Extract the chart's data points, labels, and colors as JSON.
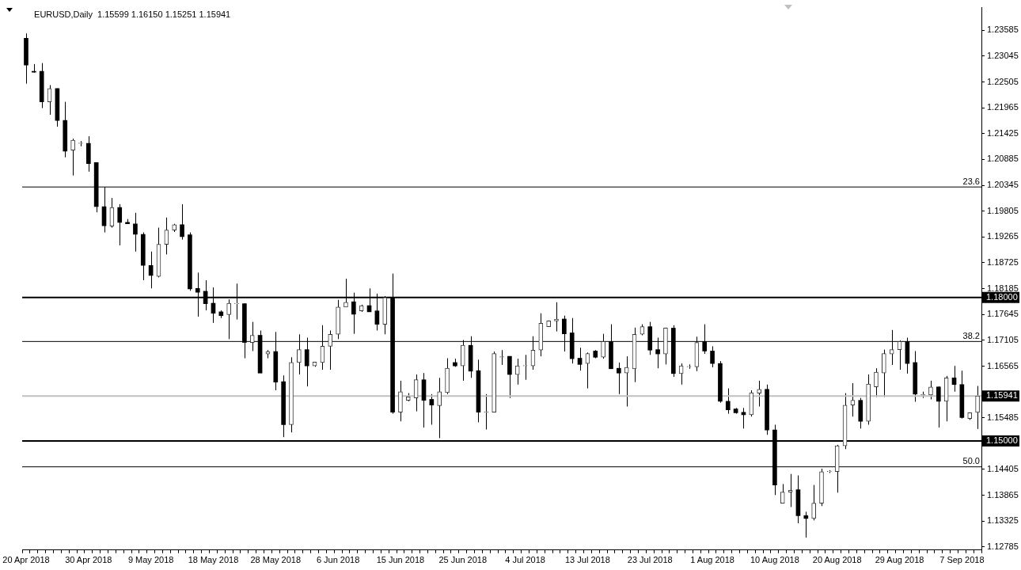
{
  "chart_data": {
    "type": "candlestick",
    "title": "EURUSD,Daily",
    "subtitle": "1.15599 1.16150 1.15251 1.15941",
    "color": "#000000",
    "grid": false,
    "legend": false,
    "categories": [
      "20 Apr 2018",
      null,
      null,
      null,
      null,
      null,
      null,
      null,
      "30 Apr 2018",
      null,
      null,
      null,
      null,
      null,
      null,
      null,
      "9 May 2018",
      null,
      null,
      null,
      null,
      null,
      null,
      null,
      "18 May 2018",
      null,
      null,
      null,
      null,
      null,
      null,
      null,
      "28 May 2018",
      null,
      null,
      null,
      null,
      null,
      null,
      null,
      "6 Jun 2018",
      null,
      null,
      null,
      null,
      null,
      null,
      null,
      "15 Jun 2018",
      null,
      null,
      null,
      null,
      null,
      null,
      null,
      "25 Jun 2018",
      null,
      null,
      null,
      null,
      null,
      null,
      null,
      "4 Jul 2018",
      null,
      null,
      null,
      null,
      null,
      null,
      null,
      "13 Jul 2018",
      null,
      null,
      null,
      null,
      null,
      null,
      null,
      "23 Jul 2018",
      null,
      null,
      null,
      null,
      null,
      null,
      null,
      "1 Aug 2018",
      null,
      null,
      null,
      null,
      null,
      null,
      null,
      "10 Aug 2018",
      null,
      null,
      null,
      null,
      null,
      null,
      null,
      "20 Aug 2018",
      null,
      null,
      null,
      null,
      null,
      null,
      null,
      "29 Aug 2018",
      null,
      null,
      null,
      null,
      null,
      null,
      null,
      "7 Sep 2018",
      null,
      null
    ],
    "ohlc": [
      [
        1.2342,
        1.2352,
        1.2247,
        1.2286
      ],
      [
        1.2272,
        1.2288,
        1.227,
        1.2271
      ],
      [
        1.2273,
        1.229,
        1.2196,
        1.2209
      ],
      [
        1.2209,
        1.2244,
        1.2182,
        1.2237
      ],
      [
        1.2237,
        1.2237,
        1.2157,
        1.217
      ],
      [
        1.217,
        1.2209,
        1.2093,
        1.2106
      ],
      [
        1.2108,
        1.2132,
        1.2055,
        1.2129
      ],
      [
        1.2122,
        1.2127,
        1.2116,
        1.2123
      ],
      [
        1.2122,
        1.2137,
        1.2063,
        1.208
      ],
      [
        1.2082,
        1.2082,
        1.1978,
        1.199
      ],
      [
        1.199,
        1.2031,
        1.1936,
        1.195
      ],
      [
        1.1949,
        1.2008,
        1.1946,
        1.1988
      ],
      [
        1.1988,
        1.1995,
        1.1909,
        1.1957
      ],
      [
        1.1957,
        1.1964,
        1.1954,
        1.1954
      ],
      [
        1.1954,
        1.1977,
        1.1896,
        1.1932
      ],
      [
        1.1932,
        1.1936,
        1.1836,
        1.1867
      ],
      [
        1.1867,
        1.1896,
        1.1819,
        1.1846
      ],
      [
        1.1844,
        1.1946,
        1.1842,
        1.1911
      ],
      [
        1.1911,
        1.1967,
        1.189,
        1.1941
      ],
      [
        1.1941,
        1.1954,
        1.1937,
        1.1952
      ],
      [
        1.1952,
        1.1995,
        1.1921,
        1.1927
      ],
      [
        1.1931,
        1.1936,
        1.1814,
        1.1818
      ],
      [
        1.1819,
        1.1852,
        1.176,
        1.1811
      ],
      [
        1.1813,
        1.1836,
        1.1773,
        1.1787
      ],
      [
        1.1788,
        1.1821,
        1.1747,
        1.1767
      ],
      [
        1.177,
        1.1773,
        1.1757,
        1.1762
      ],
      [
        1.1764,
        1.1796,
        1.1713,
        1.1788
      ],
      [
        1.1787,
        1.1829,
        1.1754,
        1.1788
      ],
      [
        1.1787,
        1.1788,
        1.1673,
        1.1706
      ],
      [
        1.1706,
        1.1749,
        1.1688,
        1.1721
      ],
      [
        1.1721,
        1.1731,
        1.1642,
        1.1642
      ],
      [
        1.1682,
        1.169,
        1.1673,
        1.1687
      ],
      [
        1.1687,
        1.1728,
        1.1606,
        1.1623
      ],
      [
        1.1624,
        1.1637,
        1.1508,
        1.1534
      ],
      [
        1.1534,
        1.1675,
        1.1518,
        1.1664
      ],
      [
        1.1664,
        1.1723,
        1.1639,
        1.1691
      ],
      [
        1.1691,
        1.1716,
        1.1614,
        1.1657
      ],
      [
        1.1657,
        1.1665,
        1.1655,
        1.1665
      ],
      [
        1.1664,
        1.1742,
        1.1649,
        1.1698
      ],
      [
        1.1698,
        1.1731,
        1.1649,
        1.1723
      ],
      [
        1.1723,
        1.1795,
        1.1713,
        1.178
      ],
      [
        1.178,
        1.1839,
        1.178,
        1.179
      ],
      [
        1.1791,
        1.181,
        1.1724,
        1.1765
      ],
      [
        1.1772,
        1.1785,
        1.177,
        1.1783
      ],
      [
        1.1783,
        1.1819,
        1.177,
        1.177
      ],
      [
        1.1772,
        1.1808,
        1.1731,
        1.1744
      ],
      [
        1.1744,
        1.1803,
        1.1723,
        1.18
      ],
      [
        1.18,
        1.185,
        1.1557,
        1.156
      ],
      [
        1.156,
        1.1626,
        1.1541,
        1.1603
      ],
      [
        1.1585,
        1.16,
        1.1583,
        1.1592
      ],
      [
        1.159,
        1.1639,
        1.1562,
        1.1628
      ],
      [
        1.1628,
        1.1642,
        1.1528,
        1.1585
      ],
      [
        1.1587,
        1.1598,
        1.1534,
        1.1575
      ],
      [
        1.1574,
        1.1632,
        1.1506,
        1.1603
      ],
      [
        1.1601,
        1.1673,
        1.1598,
        1.1652
      ],
      [
        1.1664,
        1.1672,
        1.1655,
        1.1657
      ],
      [
        1.1657,
        1.1711,
        1.1626,
        1.17
      ],
      [
        1.17,
        1.1719,
        1.1632,
        1.1646
      ],
      [
        1.1647,
        1.167,
        1.1539,
        1.156
      ],
      [
        1.156,
        1.1598,
        1.1524,
        1.1561
      ],
      [
        1.156,
        1.1687,
        1.156,
        1.1683
      ],
      [
        1.1675,
        1.169,
        1.1659,
        1.1676
      ],
      [
        1.1677,
        1.1677,
        1.159,
        1.1639
      ],
      [
        1.1639,
        1.1672,
        1.1618,
        1.1657
      ],
      [
        1.1657,
        1.168,
        1.1628,
        1.1658
      ],
      [
        1.1657,
        1.1719,
        1.1649,
        1.169
      ],
      [
        1.169,
        1.1767,
        1.1677,
        1.1746
      ],
      [
        1.1739,
        1.1752,
        1.1739,
        1.1751
      ],
      [
        1.1751,
        1.179,
        1.1729,
        1.1755
      ],
      [
        1.1755,
        1.1762,
        1.1687,
        1.1724
      ],
      [
        1.1726,
        1.1757,
        1.1662,
        1.1672
      ],
      [
        1.1673,
        1.1695,
        1.1647,
        1.166
      ],
      [
        1.1662,
        1.1685,
        1.161,
        1.1683
      ],
      [
        1.1688,
        1.169,
        1.1673,
        1.1675
      ],
      [
        1.1675,
        1.1724,
        1.1672,
        1.1708
      ],
      [
        1.1708,
        1.1744,
        1.1651,
        1.1651
      ],
      [
        1.1652,
        1.1664,
        1.1598,
        1.1642
      ],
      [
        1.1642,
        1.1677,
        1.1572,
        1.1654
      ],
      [
        1.1651,
        1.1737,
        1.1623,
        1.1723
      ],
      [
        1.1723,
        1.1744,
        1.1721,
        1.1739
      ],
      [
        1.1739,
        1.1749,
        1.168,
        1.169
      ],
      [
        1.1691,
        1.1716,
        1.1652,
        1.1682
      ],
      [
        1.1682,
        1.1737,
        1.166,
        1.1736
      ],
      [
        1.1736,
        1.1742,
        1.1634,
        1.1641
      ],
      [
        1.1641,
        1.1662,
        1.1618,
        1.1657
      ],
      [
        1.1655,
        1.166,
        1.1651,
        1.1656
      ],
      [
        1.1655,
        1.1718,
        1.1646,
        1.1706
      ],
      [
        1.1708,
        1.1744,
        1.1682,
        1.1688
      ],
      [
        1.1688,
        1.1698,
        1.1654,
        1.1662
      ],
      [
        1.1662,
        1.1667,
        1.158,
        1.1583
      ],
      [
        1.1583,
        1.161,
        1.1557,
        1.1565
      ],
      [
        1.1567,
        1.1569,
        1.1557,
        1.1559
      ],
      [
        1.156,
        1.1569,
        1.1526,
        1.1555
      ],
      [
        1.1555,
        1.1606,
        1.1551,
        1.1601
      ],
      [
        1.16,
        1.1626,
        1.1572,
        1.1608
      ],
      [
        1.1608,
        1.1618,
        1.1513,
        1.1523
      ],
      [
        1.1523,
        1.1534,
        1.1387,
        1.1408
      ],
      [
        1.137,
        1.141,
        1.137,
        1.1393
      ],
      [
        1.1393,
        1.1431,
        1.1362,
        1.1397
      ],
      [
        1.1398,
        1.1428,
        1.1328,
        1.1344
      ],
      [
        1.1344,
        1.1352,
        1.1298,
        1.1338
      ],
      [
        1.1338,
        1.1408,
        1.1334,
        1.137
      ],
      [
        1.137,
        1.1442,
        1.1364,
        1.1436
      ],
      [
        1.1436,
        1.1439,
        1.1433,
        1.1437
      ],
      [
        1.1436,
        1.1492,
        1.1392,
        1.149
      ],
      [
        1.149,
        1.16,
        1.1483,
        1.1575
      ],
      [
        1.1575,
        1.1621,
        1.1551,
        1.1585
      ],
      [
        1.1585,
        1.159,
        1.1526,
        1.1541
      ],
      [
        1.1541,
        1.1639,
        1.1534,
        1.1619
      ],
      [
        1.1613,
        1.1652,
        1.1592,
        1.1644
      ],
      [
        1.1642,
        1.1691,
        1.1592,
        1.1683
      ],
      [
        1.1682,
        1.1732,
        1.1659,
        1.1691
      ],
      [
        1.1691,
        1.171,
        1.1649,
        1.1708
      ],
      [
        1.1708,
        1.1716,
        1.1641,
        1.1662
      ],
      [
        1.1664,
        1.1688,
        1.1582,
        1.1598
      ],
      [
        1.1596,
        1.1603,
        1.159,
        1.1597
      ],
      [
        1.1596,
        1.1626,
        1.1587,
        1.1613
      ],
      [
        1.1613,
        1.1614,
        1.1528,
        1.1583
      ],
      [
        1.1583,
        1.1636,
        1.1541,
        1.1632
      ],
      [
        1.1632,
        1.1657,
        1.1603,
        1.1618
      ],
      [
        1.1618,
        1.1647,
        1.1547,
        1.1549
      ],
      [
        1.1547,
        1.1559,
        1.1544,
        1.1559
      ],
      [
        1.15599,
        1.1615,
        1.15251,
        1.15941
      ]
    ],
    "colors": [
      "#000000",
      "#000000",
      "#000000",
      "#3a3a3a",
      "#000000",
      "#000000",
      "#3a3a3a",
      "#3a3a3a",
      "#000000",
      "#000000",
      "#000000",
      "#3a3a3a",
      "#000000",
      "#000000",
      "#000000",
      "#000000",
      "#000000",
      "#3a3a3a",
      "#3a3a3a",
      "#3a3a3a",
      "#000000",
      "#000000",
      "#000000",
      "#000000",
      "#000000",
      "#000000",
      "#3a3a3a",
      "#3a3a3a",
      "#000000",
      "#3a3a3a",
      "#000000",
      "#3a3a3a",
      "#000000",
      "#000000",
      "#3a3a3a",
      "#3a3a3a",
      "#000000",
      "#3a3a3a",
      "#3a3a3a",
      "#3a3a3a",
      "#3a3a3a",
      "#3a3a3a",
      "#000000",
      "#3a3a3a",
      "#000000",
      "#000000",
      "#3a3a3a",
      "#000000",
      "#3a3a3a",
      "#3a3a3a",
      "#3a3a3a",
      "#000000",
      "#000000",
      "#3a3a3a",
      "#3a3a3a",
      "#000000",
      "#3a3a3a",
      "#000000",
      "#000000",
      "#3a3a3a",
      "#3a3a3a",
      "#3a3a3a",
      "#000000",
      "#3a3a3a",
      "#3a3a3a",
      "#3a3a3a",
      "#3a3a3a",
      "#3a3a3a",
      "#3a3a3a",
      "#000000",
      "#000000",
      "#000000",
      "#3a3a3a",
      "#000000",
      "#3a3a3a",
      "#000000",
      "#000000",
      "#3a3a3a",
      "#3a3a3a",
      "#3a3a3a",
      "#000000",
      "#000000",
      "#3a3a3a",
      "#000000",
      "#3a3a3a",
      "#3a3a3a",
      "#3a3a3a",
      "#000000",
      "#000000",
      "#000000",
      "#000000",
      "#000000",
      "#000000",
      "#3a3a3a",
      "#3a3a3a",
      "#000000",
      "#000000",
      "#3a3a3a",
      "#3a3a3a",
      "#000000",
      "#000000",
      "#3a3a3a",
      "#3a3a3a",
      "#3a3a3a",
      "#3a3a3a",
      "#3a3a3a",
      "#3a3a3a",
      "#000000",
      "#3a3a3a",
      "#3a3a3a",
      "#3a3a3a",
      "#3a3a3a",
      "#3a3a3a",
      "#000000",
      "#000000",
      "#3a3a3a",
      "#3a3a3a",
      "#000000",
      "#3a3a3a",
      "#000000",
      "#000000",
      "#3a3a3a",
      "#3a3a3a"
    ],
    "ylim": [
      1.1272,
      1.2406
    ],
    "yticks": [
      1.12785,
      1.13325,
      1.13865,
      1.14405,
      {
        "value": 1.14945,
        "label": null
      },
      1.15485,
      {
        "value": 1.16025,
        "label": null
      },
      1.16565,
      1.17105,
      1.17645,
      1.18185,
      1.18725,
      1.19265,
      1.19805,
      1.20345,
      1.20885,
      1.21425,
      1.21965,
      1.22505,
      1.23045,
      1.23585
    ],
    "ref_lines": [
      {
        "axis": "y",
        "value": 1.2031,
        "color": "#000000"
      },
      {
        "axis": "y",
        "value": 1.1708,
        "color": "#000000"
      },
      {
        "axis": "y",
        "value": 1.1446,
        "color": "#000000"
      },
      {
        "axis": "y",
        "value": 1.18,
        "label": "1.18000",
        "color": "#000000"
      },
      {
        "axis": "y",
        "value": 1.15,
        "label": "1.15000",
        "color": "#000000"
      },
      {
        "axis": "y",
        "value": 1.15941,
        "label": "1.15941",
        "color": "#c0c0c0"
      }
    ],
    "annotations": [
      {
        "text": "23.6",
        "y": 1.2031
      },
      {
        "text": "38.2",
        "y": 1.1708
      },
      {
        "text": "50.0",
        "y": 1.1446
      }
    ]
  }
}
